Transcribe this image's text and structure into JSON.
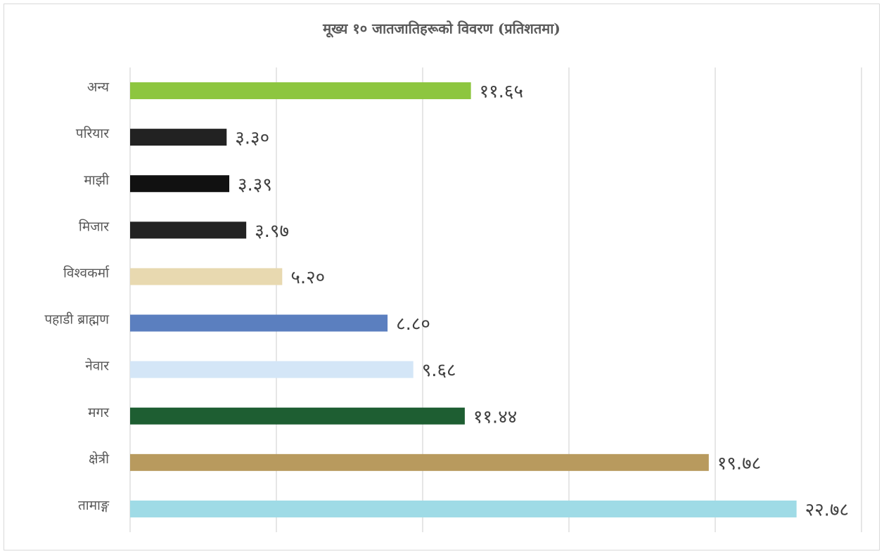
{
  "chart_data": {
    "type": "barh",
    "title": "मूख्य १० जातजातिहरूको विवरण (प्रतिशतमा)",
    "categories": [
      "अन्य",
      "परियार",
      "माझी",
      "मिजार",
      "विश्वकर्मा",
      "पहाडी ब्राह्मण",
      "नेवार",
      "मगर",
      "क्षेत्री",
      "तामाङ्ग"
    ],
    "values": [
      11.65,
      3.3,
      3.39,
      3.97,
      5.2,
      8.8,
      9.68,
      11.44,
      19.78,
      22.78
    ],
    "value_labels": [
      "११.६५",
      "३.३०",
      "३.३९",
      "३.९७",
      "५.२०",
      "८.८०",
      "९.६८",
      "११.४४",
      "१९.७८",
      "२२.७८"
    ],
    "colors": [
      "#8dc63f",
      "#222222",
      "#111111",
      "#222222",
      "#e8d9b0",
      "#5b7fbf",
      "#d4e6f7",
      "#1e5e32",
      "#b89a5e",
      "#9fdbe6"
    ],
    "xlim": [
      0,
      25
    ],
    "xticks": [
      0,
      5,
      10,
      15,
      20,
      25
    ],
    "grid": true
  }
}
